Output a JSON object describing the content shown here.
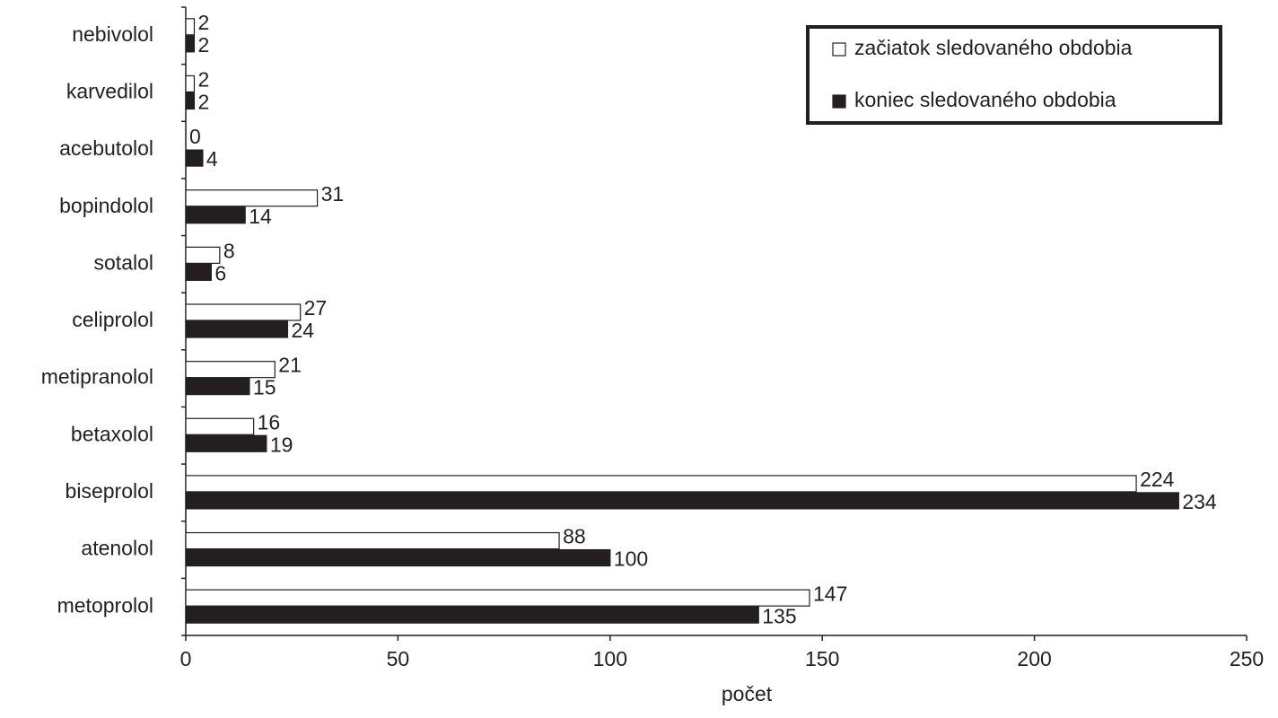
{
  "chart_data": {
    "type": "barh",
    "x_label": "počet",
    "categories": [
      "nebivolol",
      "karvedilol",
      "acebutolol",
      "bopindolol",
      "sotalol",
      "celiprolol",
      "metipranolol",
      "betaxolol",
      "biseprolol",
      "atenolol",
      "metoprolol"
    ],
    "series": [
      {
        "name": "začiatok sledovaného obdobia",
        "color": "#ffffff",
        "values": [
          2,
          2,
          0,
          31,
          8,
          27,
          21,
          16,
          224,
          88,
          147
        ]
      },
      {
        "name": "koniec sledovaného obdobia",
        "color": "#231f20",
        "values": [
          2,
          2,
          4,
          14,
          6,
          24,
          15,
          19,
          234,
          100,
          135
        ]
      }
    ],
    "xlim": [
      0,
      250
    ],
    "xticks": [
      0,
      50,
      100,
      150,
      200,
      250
    ],
    "legend": "upper right"
  }
}
